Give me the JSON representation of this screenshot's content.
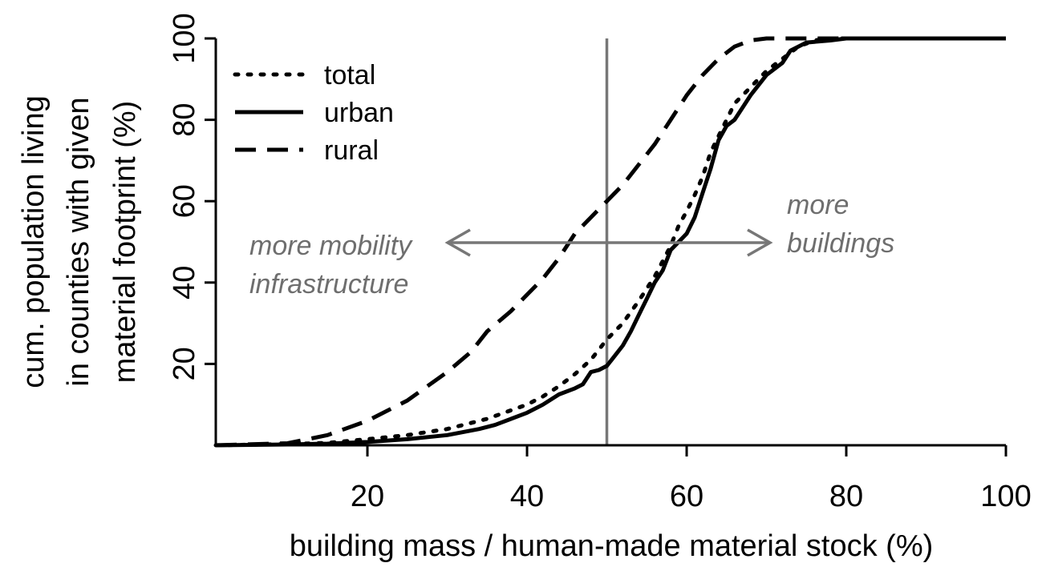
{
  "chart_data": {
    "type": "line",
    "xlabel": "building mass / human-made material stock (%)",
    "ylabel_lines": [
      "cum. population living",
      "in counties with given",
      "material footprint (%)"
    ],
    "xlim": [
      1,
      100
    ],
    "ylim": [
      0,
      100
    ],
    "x_ticks": [
      20,
      40,
      60,
      80,
      100
    ],
    "y_ticks": [
      20,
      40,
      60,
      80,
      100
    ],
    "grid": false,
    "legend_position": "top-left",
    "reference_line": {
      "x": 50,
      "color": "#777777"
    },
    "series": [
      {
        "name": "total",
        "dash": "dotted",
        "color": "#000000",
        "x": [
          1,
          10,
          15,
          20,
          25,
          30,
          35,
          40,
          42,
          44,
          46,
          48,
          50,
          52,
          54,
          56,
          58,
          59,
          60,
          61,
          62,
          63,
          64,
          65,
          66,
          68,
          70,
          72,
          74,
          76,
          78,
          80,
          83,
          90,
          100
        ],
        "y": [
          0,
          0.3,
          0.6,
          1.5,
          2.5,
          4,
          6.5,
          10,
          12,
          14.5,
          17.5,
          21,
          26,
          30,
          35.5,
          41.5,
          49,
          54,
          57.5,
          61.5,
          66,
          72,
          76,
          80,
          84,
          88,
          92,
          95,
          98,
          99.5,
          100,
          100,
          100,
          100,
          100
        ]
      },
      {
        "name": "urban",
        "dash": "solid",
        "color": "#000000",
        "x": [
          1,
          10,
          15,
          20,
          25,
          30,
          34,
          36,
          38,
          40,
          42,
          44,
          46,
          47,
          48,
          49,
          50,
          51,
          52,
          53,
          54,
          55,
          56,
          57,
          58,
          59,
          60,
          61,
          62,
          63,
          64,
          65,
          66,
          67,
          68,
          70,
          72,
          73,
          75,
          78,
          80,
          83,
          90,
          100
        ],
        "y": [
          0,
          0.2,
          0.4,
          0.8,
          1.5,
          2.5,
          4,
          5,
          6.5,
          8,
          10,
          12.5,
          14,
          15,
          18,
          18.5,
          19.5,
          22,
          24.5,
          28,
          32,
          36,
          40,
          43,
          48,
          50,
          52,
          56,
          62,
          68,
          75,
          78.5,
          80,
          83,
          86,
          91,
          94,
          97,
          99,
          99.5,
          100,
          100,
          100,
          100
        ]
      },
      {
        "name": "rural",
        "dash": "dashed",
        "color": "#000000",
        "x": [
          1,
          10,
          15,
          20,
          25,
          30,
          33,
          35,
          38,
          40,
          42,
          44,
          46,
          48,
          50,
          52,
          54,
          56,
          58,
          60,
          62,
          64,
          66,
          68,
          70,
          72,
          75,
          80,
          90,
          100
        ],
        "y": [
          0,
          0.5,
          2.5,
          6,
          11,
          18,
          23,
          28,
          33,
          37,
          41,
          46,
          52,
          56,
          60,
          64,
          69,
          74,
          80,
          86,
          91,
          95,
          98,
          99.5,
          100,
          100,
          100,
          100,
          100,
          100
        ]
      }
    ],
    "annotations": [
      {
        "lines": [
          "more mobility",
          "infrastructure"
        ],
        "arrow": "left"
      },
      {
        "lines": [
          "more",
          "buildings"
        ],
        "arrow": "right"
      }
    ]
  }
}
